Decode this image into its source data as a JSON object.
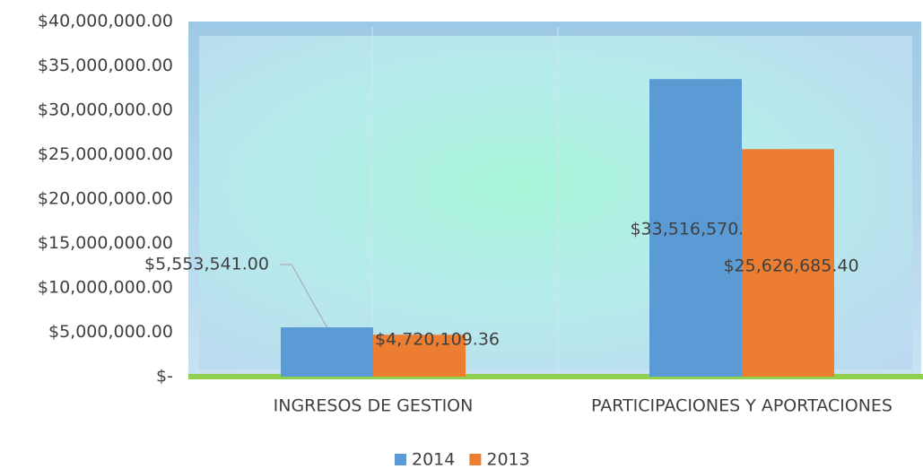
{
  "chart_data": {
    "type": "bar",
    "categories": [
      "INGRESOS DE GESTION",
      "PARTICIPACIONES Y APORTACIONES"
    ],
    "series": [
      {
        "name": "2014",
        "color": "#5b9bd5",
        "values": [
          5553541.0,
          33516570.0
        ],
        "value_labels": [
          "$5,553,541.00",
          "$33,516,570.00"
        ]
      },
      {
        "name": "2013",
        "color": "#ed7d31",
        "values": [
          4720109.36,
          25626685.4
        ],
        "value_labels": [
          "$4,720,109.36",
          "$25,626,685.40"
        ]
      }
    ],
    "ylim": [
      0,
      40000000
    ],
    "yticks": [
      {
        "value": 0,
        "label": "$-"
      },
      {
        "value": 5000000,
        "label": "$5,000,000.00"
      },
      {
        "value": 10000000,
        "label": "$10,000,000.00"
      },
      {
        "value": 15000000,
        "label": "$15,000,000.00"
      },
      {
        "value": 20000000,
        "label": "$20,000,000.00"
      },
      {
        "value": 25000000,
        "label": "$25,000,000.00"
      },
      {
        "value": 30000000,
        "label": "$30,000,000.00"
      },
      {
        "value": 35000000,
        "label": "$35,000,000.00"
      },
      {
        "value": 40000000,
        "label": "$40,000,000.00"
      }
    ],
    "legend": "bottom"
  }
}
